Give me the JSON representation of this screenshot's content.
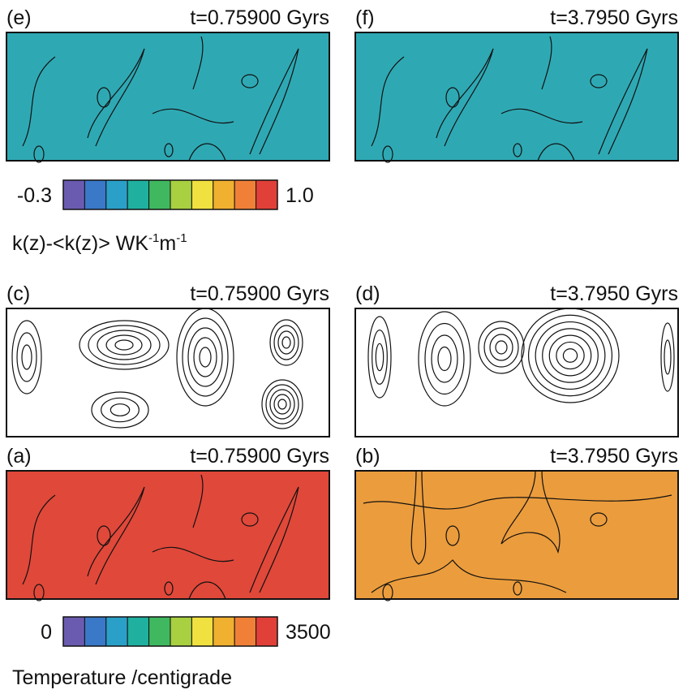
{
  "panels": [
    {
      "label": "(e)",
      "time": "t=0.75900 Gyrs"
    },
    {
      "label": "(f)",
      "time": "t=3.7950 Gyrs"
    },
    {
      "label": "(c)",
      "time": "t=0.75900 Gyrs"
    },
    {
      "label": "(d)",
      "time": "t=3.7950 Gyrs"
    },
    {
      "label": "(a)",
      "time": "t=0.75900 Gyrs"
    },
    {
      "label": "(b)",
      "time": "t=3.7950 Gyrs"
    }
  ],
  "colorbars": [
    {
      "min": "-0.3",
      "max": "1.0"
    },
    {
      "min": "0",
      "max": "3500"
    }
  ],
  "colorbar_colors": [
    "#6b5bb0",
    "#3a78c8",
    "#2aa0c8",
    "#20b0a0",
    "#40b860",
    "#a8d040",
    "#f0e040",
    "#f0b030",
    "#f08038",
    "#e04038"
  ],
  "k_label": {
    "main": "k(z)-<k(z)>  WK",
    "sup1": "-1",
    "m": "m",
    "sup2": "-1"
  },
  "temperature_label": "Temperature /centigrade"
}
